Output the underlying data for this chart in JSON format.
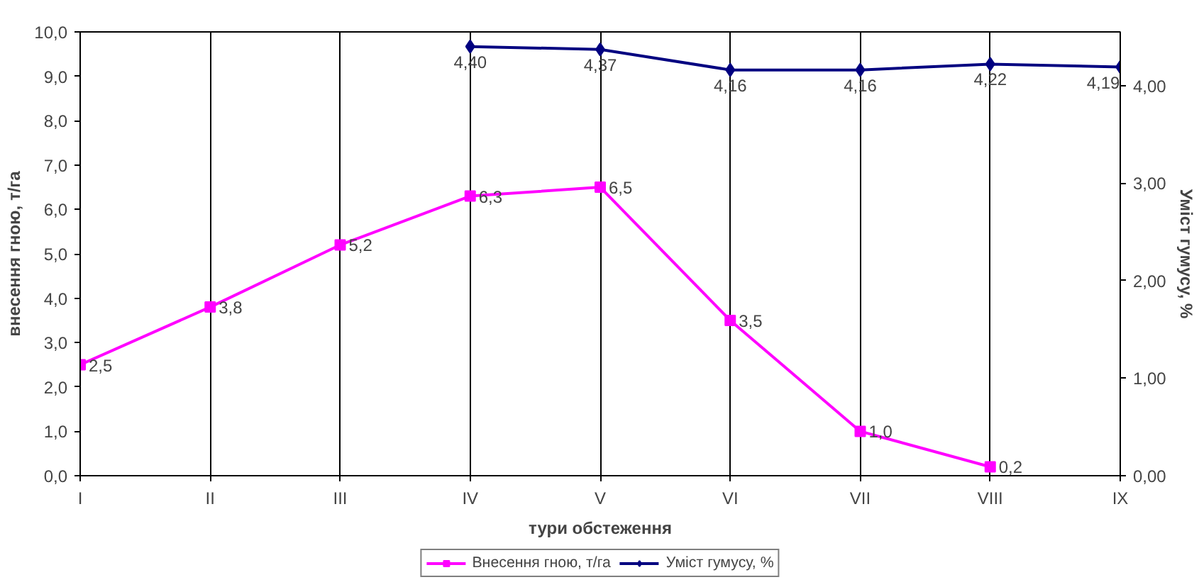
{
  "chart_data": {
    "type": "line",
    "xlabel": "тури обстеження",
    "ylabel": "внесення гною, т/га",
    "y2label": "Уміст гумусу, %",
    "categories": [
      "I",
      "II",
      "III",
      "IV",
      "V",
      "VI",
      "VII",
      "VIII",
      "IX"
    ],
    "series": [
      {
        "name": "Внесення гною, т/га",
        "color": "#ff00ff",
        "marker": "square",
        "values": [
          2.5,
          3.8,
          5.2,
          6.3,
          6.5,
          3.5,
          1.0,
          0.2,
          null
        ],
        "value_labels": [
          "2,5",
          "3,8",
          "5,2",
          "6,3",
          "6,5",
          "3,5",
          "1,0",
          "0,2",
          null
        ]
      },
      {
        "name": "Уміст гумусу, %",
        "color": "#000080",
        "marker": "diamond",
        "axis": "y2",
        "values": [
          null,
          null,
          null,
          4.4,
          4.37,
          4.16,
          4.16,
          4.22,
          4.19
        ],
        "value_labels": [
          null,
          null,
          null,
          "4,40",
          "4,37",
          "4,16",
          "4,16",
          "4,22",
          "4,19"
        ]
      }
    ],
    "ylim": [
      0,
      10
    ],
    "yticks": [
      {
        "value": 0,
        "label": "0,0"
      },
      {
        "value": 1,
        "label": "1,0"
      },
      {
        "value": 2,
        "label": "2,0"
      },
      {
        "value": 3,
        "label": "3,0"
      },
      {
        "value": 4,
        "label": "4,0"
      },
      {
        "value": 5,
        "label": "5,0"
      },
      {
        "value": 6,
        "label": "6,0"
      },
      {
        "value": 7,
        "label": "7,0"
      },
      {
        "value": 8,
        "label": "8,0"
      },
      {
        "value": 9,
        "label": "9,0"
      },
      {
        "value": 10,
        "label": "10,0"
      }
    ],
    "y2lim": [
      0,
      4.55
    ],
    "y2ticks": [
      {
        "value": 0,
        "label": "0,00"
      },
      {
        "value": 1,
        "label": "1,00"
      },
      {
        "value": 2,
        "label": "2,00"
      },
      {
        "value": 3,
        "label": "3,00"
      },
      {
        "value": 4,
        "label": "4,00"
      }
    ],
    "grid": "x",
    "legend": "bottom",
    "line_style": "solid"
  }
}
